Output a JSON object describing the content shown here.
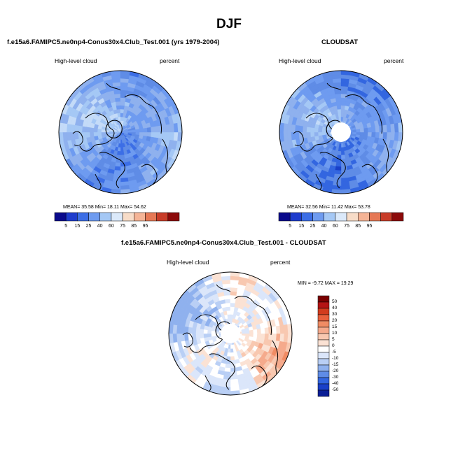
{
  "title": "DJF",
  "panels": [
    {
      "id": "model",
      "title": "f.e15a6.FAMIPC5.ne0np4-Conus30x4.Club_Test.001 (yrs 1979-2004)",
      "left_label": "High-level cloud",
      "right_label": "percent",
      "stats": "MEAN=  35.58  Min=  18.11  Max=  54.62"
    },
    {
      "id": "obs",
      "title": "CLOUDSAT",
      "left_label": "High-level cloud",
      "right_label": "percent",
      "stats": "MEAN=  32.56  Min=  11.42  Max=  53.78"
    },
    {
      "id": "diff",
      "title": "f.e15a6.FAMIPC5.ne0np4-Conus30x4.Club_Test.001 - CLOUDSAT",
      "left_label": "High-level cloud",
      "right_label": "percent",
      "stats": "MIN = -9.72 MAX =  19.29"
    }
  ],
  "chart_data": [
    {
      "type": "heatmap",
      "projection": "north-polar-stereographic",
      "title": "f.e15a6.FAMIPC5.ne0np4-Conus30x4.Club_Test.001 (yrs 1979-2004)",
      "variable": "High-level cloud",
      "units": "percent",
      "mean": 35.58,
      "min": 18.11,
      "max": 54.62,
      "colorbar_levels": [
        "5",
        "15",
        "25",
        "40",
        "60",
        "75",
        "85",
        "95"
      ],
      "colorbar_colors": [
        "#0a0a8c",
        "#1e3ccd",
        "#3c6ee6",
        "#6e9bf0",
        "#a5c8f5",
        "#dbe9fa",
        "#f7dcc8",
        "#f5b496",
        "#e67855",
        "#c83c28",
        "#8c0a0a"
      ]
    },
    {
      "type": "heatmap",
      "projection": "north-polar-stereographic",
      "title": "CLOUDSAT",
      "variable": "High-level cloud",
      "units": "percent",
      "mean": 32.56,
      "min": 11.42,
      "max": 53.78,
      "colorbar_levels": [
        "5",
        "15",
        "25",
        "40",
        "60",
        "75",
        "85",
        "95"
      ],
      "colorbar_colors": [
        "#0a0a8c",
        "#1e3ccd",
        "#3c6ee6",
        "#6e9bf0",
        "#a5c8f5",
        "#dbe9fa",
        "#f7dcc8",
        "#f5b496",
        "#e67855",
        "#c83c28",
        "#8c0a0a"
      ]
    },
    {
      "type": "heatmap",
      "projection": "north-polar-stereographic",
      "title": "f.e15a6.FAMIPC5.ne0np4-Conus30x4.Club_Test.001 - CLOUDSAT",
      "variable": "High-level cloud",
      "units": "percent",
      "min": -9.72,
      "max": 19.29,
      "colorbar_levels": [
        "50",
        "40",
        "30",
        "20",
        "15",
        "10",
        "5",
        "0",
        "-5",
        "-10",
        "-15",
        "-20",
        "-30",
        "-40",
        "-50"
      ],
      "colorbar_colors": [
        "#7a0000",
        "#b41414",
        "#d23c1e",
        "#e8603c",
        "#f08c64",
        "#f5aa8c",
        "#f8c8b0",
        "#fbe2d4",
        "#ffffff",
        "#dbe6fa",
        "#b9cff5",
        "#8fb1ee",
        "#5f8ce6",
        "#3366e0",
        "#1a40c8",
        "#0a1e96"
      ]
    }
  ]
}
